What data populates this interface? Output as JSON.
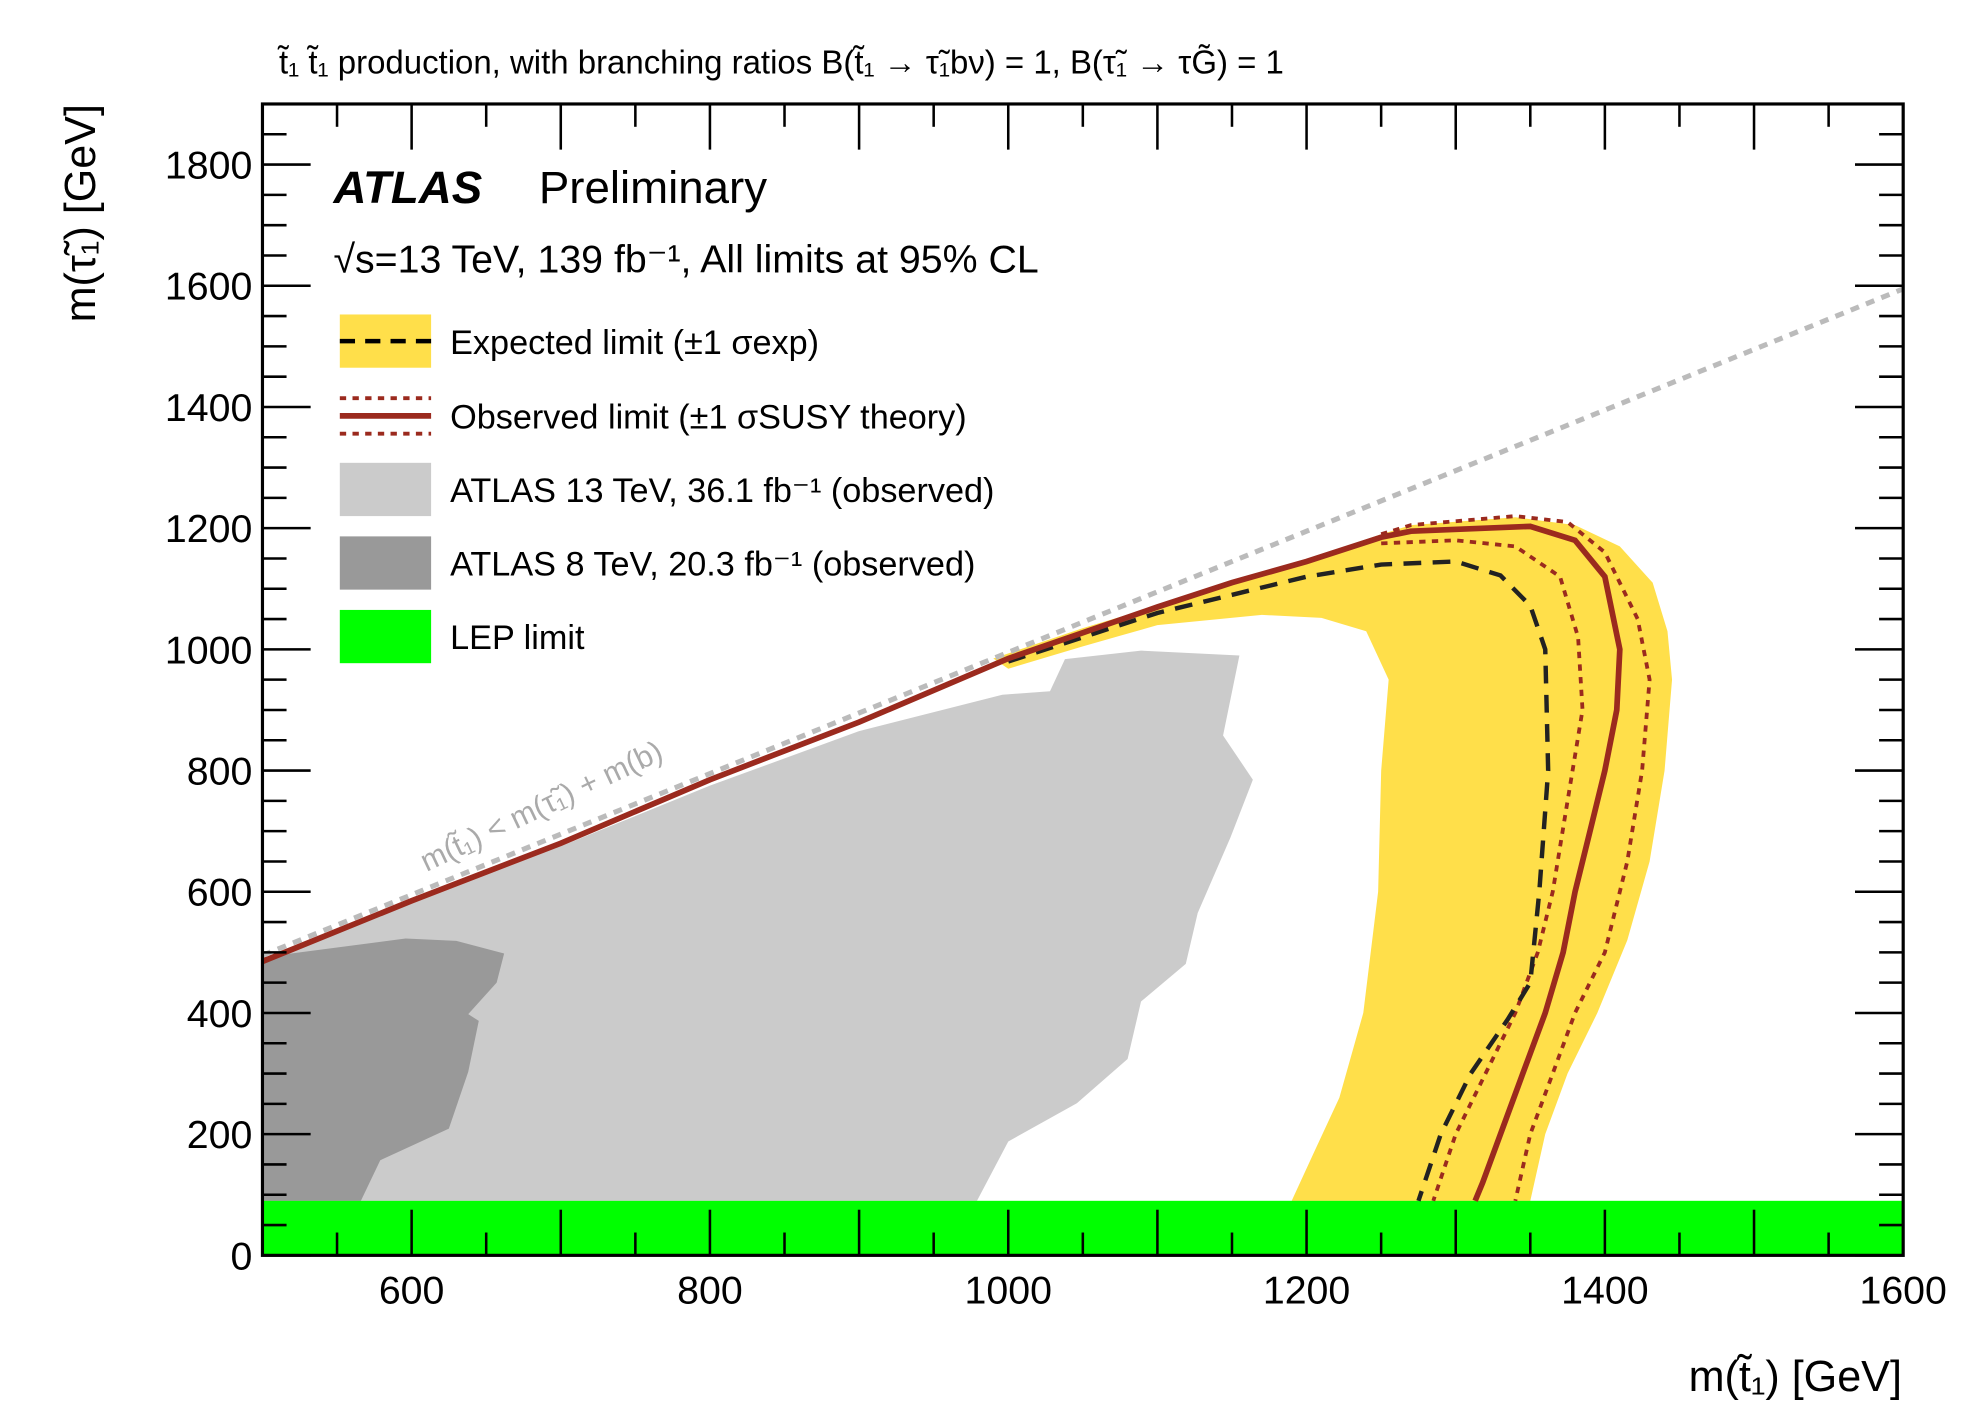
{
  "chart_data": {
    "type": "area",
    "title": "t̃₁ t̃₁ production, with branching ratios B(t̃₁ → τ̃₁bν) = 1, B(τ̃₁ → τG̃) = 1",
    "xlabel": "m(t̃₁) [GeV]",
    "ylabel": "m(τ̃₁) [GeV]",
    "xlim": [
      500,
      1600
    ],
    "ylim": [
      0,
      1900
    ],
    "xticks": [
      600,
      800,
      1000,
      1200,
      1400,
      1600
    ],
    "yticks": [
      0,
      200,
      400,
      600,
      800,
      1000,
      1200,
      1400,
      1600,
      1800
    ],
    "atlas_label": "ATLAS",
    "atlas_sublabel": "Preliminary",
    "energy_label": "√s=13 TeV, 139 fb⁻¹, All limits at 95% CL",
    "diagonal_label": "m(t̃₁) < m(τ̃₁) + m(b)",
    "legend": [
      {
        "key": "expected",
        "label": "Expected limit (±1 σexp)"
      },
      {
        "key": "observed",
        "label": "Observed limit (±1 σSUSY theory)"
      },
      {
        "key": "atlas13",
        "label": "ATLAS 13 TeV, 36.1 fb⁻¹ (observed)"
      },
      {
        "key": "atlas8",
        "label": "ATLAS 8 TeV, 20.3 fb⁻¹ (observed)"
      },
      {
        "key": "lep",
        "label": "LEP limit"
      }
    ],
    "colors": {
      "band": "#ffdf4a",
      "observed": "#9b2a1e",
      "lep": "#00ff00",
      "atlas13": "#cbcbcb",
      "atlas8": "#999999",
      "diagonal": "#bbbbbb"
    },
    "lep_limit": 90,
    "diagonal": [
      [
        500,
        495
      ],
      [
        1600,
        1595
      ]
    ],
    "atlas8": [
      [
        500,
        492
      ],
      [
        596,
        523
      ],
      [
        630,
        519
      ],
      [
        662,
        498
      ],
      [
        657,
        450
      ],
      [
        638,
        398
      ],
      [
        645,
        387
      ],
      [
        638,
        303
      ],
      [
        625,
        209
      ],
      [
        579,
        157
      ],
      [
        566,
        90
      ],
      [
        500,
        90
      ]
    ],
    "atlas13": [
      [
        500,
        485
      ],
      [
        600,
        580
      ],
      [
        700,
        675
      ],
      [
        800,
        775
      ],
      [
        900,
        865
      ],
      [
        996,
        925
      ],
      [
        1028,
        931
      ],
      [
        1038,
        984
      ],
      [
        1089,
        998
      ],
      [
        1155,
        990
      ],
      [
        1144,
        858
      ],
      [
        1164,
        785
      ],
      [
        1149,
        690
      ],
      [
        1127,
        565
      ],
      [
        1119,
        481
      ],
      [
        1089,
        419
      ],
      [
        1080,
        324
      ],
      [
        1046,
        251
      ],
      [
        1000,
        188
      ],
      [
        979,
        90
      ],
      [
        500,
        90
      ]
    ],
    "expected_band": [
      [
        990,
        985
      ],
      [
        1050,
        1035
      ],
      [
        1100,
        1072
      ],
      [
        1150,
        1112
      ],
      [
        1200,
        1148
      ],
      [
        1250,
        1190
      ],
      [
        1270,
        1205
      ],
      [
        1340,
        1218
      ],
      [
        1380,
        1205
      ],
      [
        1410,
        1170
      ],
      [
        1432,
        1110
      ],
      [
        1442,
        1030
      ],
      [
        1445,
        950
      ],
      [
        1440,
        800
      ],
      [
        1430,
        650
      ],
      [
        1415,
        520
      ],
      [
        1395,
        400
      ],
      [
        1375,
        300
      ],
      [
        1360,
        200
      ],
      [
        1350,
        90
      ],
      [
        1190,
        90
      ],
      [
        1205,
        170
      ],
      [
        1222,
        260
      ],
      [
        1238,
        400
      ],
      [
        1248,
        600
      ],
      [
        1250,
        800
      ],
      [
        1255,
        950
      ],
      [
        1240,
        1030
      ],
      [
        1210,
        1052
      ],
      [
        1170,
        1057
      ],
      [
        1100,
        1040
      ],
      [
        1050,
        1005
      ],
      [
        1000,
        968
      ]
    ],
    "expected": [
      [
        1000,
        980
      ],
      [
        1100,
        1060
      ],
      [
        1200,
        1120
      ],
      [
        1250,
        1140
      ],
      [
        1300,
        1145
      ],
      [
        1330,
        1122
      ],
      [
        1350,
        1072
      ],
      [
        1360,
        1000
      ],
      [
        1362,
        800
      ],
      [
        1356,
        600
      ],
      [
        1350,
        450
      ],
      [
        1335,
        390
      ],
      [
        1310,
        300
      ],
      [
        1290,
        200
      ],
      [
        1275,
        90
      ]
    ],
    "observed": [
      [
        500,
        485
      ],
      [
        600,
        585
      ],
      [
        700,
        680
      ],
      [
        800,
        785
      ],
      [
        900,
        880
      ],
      [
        1000,
        985
      ],
      [
        1100,
        1070
      ],
      [
        1150,
        1110
      ],
      [
        1200,
        1145
      ],
      [
        1250,
        1185
      ],
      [
        1270,
        1195
      ],
      [
        1350,
        1203
      ],
      [
        1380,
        1180
      ],
      [
        1400,
        1120
      ],
      [
        1410,
        1000
      ],
      [
        1408,
        900
      ],
      [
        1400,
        800
      ],
      [
        1390,
        700
      ],
      [
        1380,
        600
      ],
      [
        1372,
        500
      ],
      [
        1360,
        400
      ],
      [
        1345,
        300
      ],
      [
        1330,
        200
      ],
      [
        1318,
        120
      ],
      [
        1313,
        90
      ]
    ],
    "observed_up": [
      [
        1250,
        1190
      ],
      [
        1270,
        1205
      ],
      [
        1340,
        1220
      ],
      [
        1375,
        1210
      ],
      [
        1400,
        1160
      ],
      [
        1422,
        1050
      ],
      [
        1430,
        950
      ],
      [
        1425,
        800
      ],
      [
        1415,
        650
      ],
      [
        1400,
        500
      ],
      [
        1380,
        400
      ],
      [
        1365,
        300
      ],
      [
        1350,
        200
      ],
      [
        1340,
        90
      ]
    ],
    "observed_down": [
      [
        1250,
        1175
      ],
      [
        1300,
        1180
      ],
      [
        1340,
        1170
      ],
      [
        1370,
        1120
      ],
      [
        1382,
        1020
      ],
      [
        1385,
        900
      ],
      [
        1375,
        750
      ],
      [
        1365,
        600
      ],
      [
        1355,
        500
      ],
      [
        1340,
        400
      ],
      [
        1320,
        300
      ],
      [
        1300,
        200
      ],
      [
        1285,
        90
      ]
    ]
  }
}
